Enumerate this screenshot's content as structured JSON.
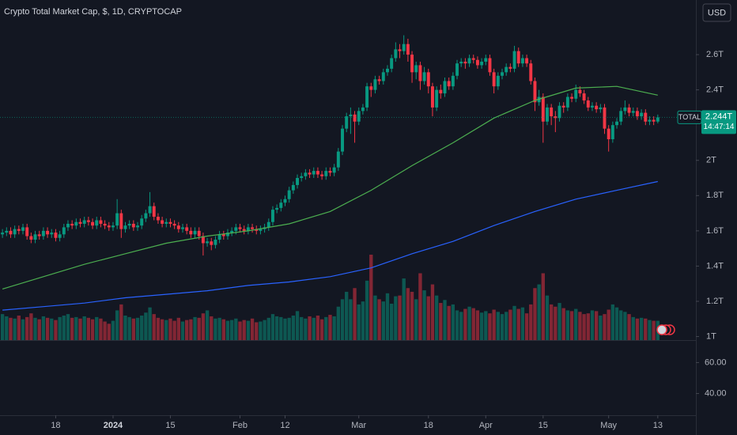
{
  "chart_data": {
    "type": "candlestick",
    "title": "Crypto Total Market Cap, $, 1D, CRYPTOCAP",
    "currency": "USD",
    "tag": "TOTAL",
    "last_label": "2.244T",
    "countdown": "14:47:14",
    "up_color": "#089981",
    "down_color": "#f23645",
    "ylim": [
      0.98,
      2.91
    ],
    "yticks": [
      {
        "value": 1,
        "label": "1T"
      },
      {
        "value": 1.2,
        "label": "1.2T"
      },
      {
        "value": 1.4,
        "label": "1.4T"
      },
      {
        "value": 1.6,
        "label": "1.6T"
      },
      {
        "value": 1.8,
        "label": "1.8T"
      },
      {
        "value": 2,
        "label": "2T"
      },
      {
        "value": 2.4,
        "label": "2.4T"
      },
      {
        "value": 2.6,
        "label": "2.6T"
      }
    ],
    "xlim": [
      -0.6,
      169.3
    ],
    "xticks": [
      {
        "value": 13,
        "label": "18"
      },
      {
        "value": 27,
        "label": "2024"
      },
      {
        "value": 41,
        "label": "15"
      },
      {
        "value": 58,
        "label": "Feb"
      },
      {
        "value": 69,
        "label": "12"
      },
      {
        "value": 87,
        "label": "Mar"
      },
      {
        "value": 104,
        "label": "18"
      },
      {
        "value": 118,
        "label": "Apr"
      },
      {
        "value": 132,
        "label": "15"
      },
      {
        "value": 148,
        "label": "May"
      },
      {
        "value": 160,
        "label": "13"
      }
    ],
    "candles": [
      [
        1.58,
        1.61,
        1.56,
        1.59
      ],
      [
        1.59,
        1.62,
        1.57,
        1.6
      ],
      [
        1.6,
        1.62,
        1.56,
        1.58
      ],
      [
        1.58,
        1.63,
        1.56,
        1.61
      ],
      [
        1.61,
        1.63,
        1.58,
        1.6
      ],
      [
        1.6,
        1.64,
        1.58,
        1.62
      ],
      [
        1.62,
        1.64,
        1.55,
        1.57
      ],
      [
        1.57,
        1.59,
        1.53,
        1.55
      ],
      [
        1.55,
        1.6,
        1.53,
        1.58
      ],
      [
        1.58,
        1.6,
        1.55,
        1.57
      ],
      [
        1.57,
        1.62,
        1.55,
        1.6
      ],
      [
        1.6,
        1.62,
        1.56,
        1.58
      ],
      [
        1.58,
        1.61,
        1.56,
        1.59
      ],
      [
        1.59,
        1.61,
        1.54,
        1.56
      ],
      [
        1.56,
        1.6,
        1.54,
        1.58
      ],
      [
        1.58,
        1.64,
        1.56,
        1.62
      ],
      [
        1.62,
        1.66,
        1.6,
        1.64
      ],
      [
        1.64,
        1.66,
        1.61,
        1.63
      ],
      [
        1.63,
        1.67,
        1.61,
        1.65
      ],
      [
        1.65,
        1.67,
        1.62,
        1.64
      ],
      [
        1.64,
        1.68,
        1.62,
        1.66
      ],
      [
        1.66,
        1.68,
        1.63,
        1.65
      ],
      [
        1.65,
        1.67,
        1.61,
        1.63
      ],
      [
        1.63,
        1.68,
        1.61,
        1.66
      ],
      [
        1.66,
        1.68,
        1.62,
        1.64
      ],
      [
        1.64,
        1.66,
        1.61,
        1.63
      ],
      [
        1.63,
        1.65,
        1.6,
        1.62
      ],
      [
        1.62,
        1.65,
        1.6,
        1.63
      ],
      [
        1.63,
        1.78,
        1.61,
        1.7
      ],
      [
        1.7,
        1.72,
        1.56,
        1.61
      ],
      [
        1.61,
        1.65,
        1.59,
        1.63
      ],
      [
        1.63,
        1.66,
        1.61,
        1.64
      ],
      [
        1.64,
        1.66,
        1.6,
        1.62
      ],
      [
        1.62,
        1.65,
        1.6,
        1.63
      ],
      [
        1.63,
        1.69,
        1.61,
        1.67
      ],
      [
        1.67,
        1.72,
        1.65,
        1.7
      ],
      [
        1.7,
        1.82,
        1.68,
        1.74
      ],
      [
        1.74,
        1.76,
        1.66,
        1.68
      ],
      [
        1.68,
        1.7,
        1.64,
        1.66
      ],
      [
        1.66,
        1.68,
        1.62,
        1.64
      ],
      [
        1.64,
        1.67,
        1.62,
        1.65
      ],
      [
        1.65,
        1.67,
        1.62,
        1.64
      ],
      [
        1.64,
        1.66,
        1.61,
        1.63
      ],
      [
        1.63,
        1.65,
        1.59,
        1.61
      ],
      [
        1.61,
        1.64,
        1.59,
        1.62
      ],
      [
        1.62,
        1.64,
        1.58,
        1.6
      ],
      [
        1.6,
        1.62,
        1.56,
        1.58
      ],
      [
        1.58,
        1.62,
        1.56,
        1.6
      ],
      [
        1.6,
        1.62,
        1.55,
        1.57
      ],
      [
        1.57,
        1.59,
        1.46,
        1.53
      ],
      [
        1.53,
        1.56,
        1.51,
        1.54
      ],
      [
        1.54,
        1.56,
        1.49,
        1.52
      ],
      [
        1.52,
        1.57,
        1.5,
        1.55
      ],
      [
        1.55,
        1.6,
        1.53,
        1.58
      ],
      [
        1.58,
        1.6,
        1.55,
        1.57
      ],
      [
        1.57,
        1.61,
        1.55,
        1.59
      ],
      [
        1.59,
        1.62,
        1.57,
        1.6
      ],
      [
        1.6,
        1.64,
        1.58,
        1.62
      ],
      [
        1.62,
        1.64,
        1.59,
        1.61
      ],
      [
        1.61,
        1.63,
        1.58,
        1.6
      ],
      [
        1.6,
        1.64,
        1.58,
        1.62
      ],
      [
        1.62,
        1.64,
        1.59,
        1.61
      ],
      [
        1.61,
        1.63,
        1.58,
        1.6
      ],
      [
        1.6,
        1.63,
        1.58,
        1.61
      ],
      [
        1.61,
        1.64,
        1.59,
        1.62
      ],
      [
        1.62,
        1.67,
        1.6,
        1.65
      ],
      [
        1.65,
        1.74,
        1.63,
        1.72
      ],
      [
        1.72,
        1.75,
        1.7,
        1.73
      ],
      [
        1.73,
        1.78,
        1.71,
        1.76
      ],
      [
        1.76,
        1.8,
        1.74,
        1.78
      ],
      [
        1.78,
        1.85,
        1.76,
        1.83
      ],
      [
        1.83,
        1.88,
        1.81,
        1.86
      ],
      [
        1.86,
        1.92,
        1.84,
        1.9
      ],
      [
        1.9,
        1.93,
        1.88,
        1.91
      ],
      [
        1.91,
        1.95,
        1.89,
        1.93
      ],
      [
        1.93,
        1.95,
        1.9,
        1.92
      ],
      [
        1.92,
        1.96,
        1.9,
        1.94
      ],
      [
        1.94,
        1.96,
        1.9,
        1.92
      ],
      [
        1.92,
        1.94,
        1.89,
        1.91
      ],
      [
        1.91,
        1.96,
        1.89,
        1.94
      ],
      [
        1.94,
        1.96,
        1.91,
        1.93
      ],
      [
        1.93,
        1.98,
        1.91,
        1.96
      ],
      [
        1.96,
        2.07,
        1.94,
        2.05
      ],
      [
        2.05,
        2.2,
        2.03,
        2.18
      ],
      [
        2.18,
        2.27,
        2.16,
        2.25
      ],
      [
        2.25,
        2.3,
        2.15,
        2.26
      ],
      [
        2.26,
        2.28,
        2.1,
        2.22
      ],
      [
        2.22,
        2.3,
        2.2,
        2.28
      ],
      [
        2.28,
        2.32,
        2.26,
        2.3
      ],
      [
        2.3,
        2.44,
        2.28,
        2.42
      ],
      [
        2.42,
        2.44,
        2.36,
        2.4
      ],
      [
        2.4,
        2.48,
        2.38,
        2.46
      ],
      [
        2.46,
        2.48,
        2.43,
        2.45
      ],
      [
        2.45,
        2.52,
        2.43,
        2.5
      ],
      [
        2.5,
        2.54,
        2.48,
        2.52
      ],
      [
        2.52,
        2.6,
        2.5,
        2.58
      ],
      [
        2.58,
        2.67,
        2.56,
        2.63
      ],
      [
        2.63,
        2.66,
        2.58,
        2.62
      ],
      [
        2.62,
        2.71,
        2.6,
        2.66
      ],
      [
        2.66,
        2.69,
        2.56,
        2.6
      ],
      [
        2.6,
        2.62,
        2.44,
        2.5
      ],
      [
        2.5,
        2.56,
        2.46,
        2.54
      ],
      [
        2.54,
        2.56,
        2.4,
        2.45
      ],
      [
        2.45,
        2.53,
        2.43,
        2.5
      ],
      [
        2.5,
        2.52,
        2.38,
        2.42
      ],
      [
        2.42,
        2.44,
        2.25,
        2.3
      ],
      [
        2.3,
        2.42,
        2.28,
        2.4
      ],
      [
        2.4,
        2.43,
        2.35,
        2.38
      ],
      [
        2.38,
        2.47,
        2.36,
        2.45
      ],
      [
        2.45,
        2.47,
        2.4,
        2.42
      ],
      [
        2.42,
        2.5,
        2.4,
        2.48
      ],
      [
        2.48,
        2.57,
        2.46,
        2.55
      ],
      [
        2.55,
        2.58,
        2.53,
        2.56
      ],
      [
        2.56,
        2.58,
        2.52,
        2.55
      ],
      [
        2.55,
        2.6,
        2.53,
        2.58
      ],
      [
        2.58,
        2.6,
        2.55,
        2.57
      ],
      [
        2.57,
        2.59,
        2.52,
        2.54
      ],
      [
        2.54,
        2.58,
        2.52,
        2.56
      ],
      [
        2.56,
        2.6,
        2.54,
        2.58
      ],
      [
        2.58,
        2.6,
        2.48,
        2.5
      ],
      [
        2.5,
        2.52,
        2.38,
        2.42
      ],
      [
        2.42,
        2.5,
        2.4,
        2.48
      ],
      [
        2.48,
        2.52,
        2.46,
        2.5
      ],
      [
        2.5,
        2.55,
        2.48,
        2.53
      ],
      [
        2.53,
        2.55,
        2.5,
        2.52
      ],
      [
        2.52,
        2.65,
        2.5,
        2.62
      ],
      [
        2.62,
        2.64,
        2.53,
        2.55
      ],
      [
        2.55,
        2.6,
        2.53,
        2.58
      ],
      [
        2.58,
        2.6,
        2.53,
        2.55
      ],
      [
        2.55,
        2.57,
        2.43,
        2.45
      ],
      [
        2.45,
        2.47,
        2.28,
        2.33
      ],
      [
        2.33,
        2.4,
        2.31,
        2.36
      ],
      [
        2.36,
        2.38,
        2.1,
        2.22
      ],
      [
        2.22,
        2.32,
        2.2,
        2.3
      ],
      [
        2.3,
        2.32,
        2.2,
        2.25
      ],
      [
        2.25,
        2.28,
        2.16,
        2.24
      ],
      [
        2.24,
        2.33,
        2.22,
        2.31
      ],
      [
        2.31,
        2.33,
        2.27,
        2.3
      ],
      [
        2.3,
        2.38,
        2.28,
        2.36
      ],
      [
        2.36,
        2.38,
        2.33,
        2.35
      ],
      [
        2.35,
        2.43,
        2.33,
        2.4
      ],
      [
        2.4,
        2.42,
        2.36,
        2.38
      ],
      [
        2.38,
        2.4,
        2.32,
        2.34
      ],
      [
        2.34,
        2.36,
        2.28,
        2.3
      ],
      [
        2.3,
        2.33,
        2.28,
        2.31
      ],
      [
        2.31,
        2.33,
        2.27,
        2.29
      ],
      [
        2.29,
        2.32,
        2.27,
        2.3
      ],
      [
        2.3,
        2.32,
        2.15,
        2.18
      ],
      [
        2.18,
        2.2,
        2.05,
        2.12
      ],
      [
        2.12,
        2.22,
        2.1,
        2.2
      ],
      [
        2.2,
        2.24,
        2.18,
        2.22
      ],
      [
        2.22,
        2.3,
        2.2,
        2.28
      ],
      [
        2.28,
        2.34,
        2.26,
        2.3
      ],
      [
        2.3,
        2.32,
        2.25,
        2.27
      ],
      [
        2.27,
        2.3,
        2.25,
        2.28
      ],
      [
        2.28,
        2.3,
        2.23,
        2.25
      ],
      [
        2.25,
        2.29,
        2.23,
        2.27
      ],
      [
        2.27,
        2.29,
        2.2,
        2.22
      ],
      [
        2.22,
        2.25,
        2.2,
        2.23
      ],
      [
        2.23,
        2.25,
        2.2,
        2.22
      ],
      [
        2.22,
        2.26,
        2.21,
        2.244
      ]
    ],
    "volume": [
      70,
      64,
      60,
      58,
      66,
      56,
      62,
      72,
      60,
      56,
      64,
      60,
      58,
      54,
      62,
      66,
      70,
      60,
      62,
      58,
      64,
      60,
      56,
      62,
      58,
      50,
      44,
      52,
      80,
      96,
      66,
      62,
      58,
      60,
      66,
      74,
      88,
      70,
      60,
      56,
      54,
      58,
      52,
      60,
      50,
      54,
      56,
      62,
      60,
      72,
      80,
      64,
      58,
      60,
      56,
      52,
      54,
      58,
      50,
      54,
      52,
      58,
      48,
      50,
      54,
      60,
      70,
      64,
      62,
      58,
      60,
      66,
      78,
      62,
      58,
      64,
      60,
      66,
      56,
      62,
      68,
      64,
      90,
      110,
      130,
      110,
      140,
      96,
      104,
      160,
      230,
      120,
      110,
      104,
      126,
      98,
      118,
      120,
      166,
      140,
      130,
      110,
      180,
      134,
      118,
      150,
      120,
      100,
      108,
      92,
      96,
      80,
      76,
      84,
      90,
      86,
      80,
      74,
      78,
      72,
      82,
      76,
      70,
      76,
      82,
      92,
      84,
      88,
      72,
      96,
      140,
      150,
      180,
      120,
      96,
      90,
      100,
      86,
      80,
      78,
      84,
      76,
      70,
      72,
      80,
      78,
      66,
      70,
      82,
      96,
      88,
      80,
      76,
      70,
      62,
      58,
      60,
      58,
      54,
      52,
      52
    ],
    "series": [
      {
        "color": "#4caf50",
        "x": [
          0,
          10,
          20,
          30,
          40,
          50,
          60,
          70,
          80,
          90,
          100,
          110,
          120,
          130,
          140,
          150,
          160
        ],
        "values": [
          1.27,
          1.34,
          1.41,
          1.47,
          1.53,
          1.57,
          1.6,
          1.64,
          1.71,
          1.83,
          1.97,
          2.1,
          2.24,
          2.34,
          2.41,
          2.42,
          2.37
        ]
      },
      {
        "color": "#2962ff",
        "x": [
          0,
          10,
          20,
          30,
          40,
          50,
          60,
          70,
          80,
          90,
          100,
          110,
          120,
          130,
          140,
          150,
          160
        ],
        "values": [
          1.15,
          1.17,
          1.19,
          1.22,
          1.24,
          1.26,
          1.29,
          1.31,
          1.34,
          1.39,
          1.47,
          1.54,
          1.63,
          1.71,
          1.78,
          1.83,
          1.88
        ]
      }
    ],
    "pane2": {
      "ylim": [
        26,
        74
      ],
      "yticks": [
        {
          "value": 60,
          "label": "60.00"
        },
        {
          "value": 40,
          "label": "40.00"
        }
      ]
    }
  }
}
